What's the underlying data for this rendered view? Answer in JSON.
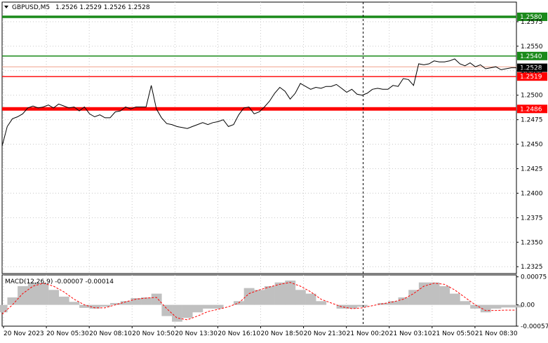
{
  "symbol_header": {
    "symbol": "GBPUSD,M5",
    "ohlc": "1.2526 1.2529 1.2526 1.2528",
    "menu_icon": "triangle-down-icon"
  },
  "chart_data": [
    {
      "type": "line",
      "panel": "main",
      "ylim": [
        1.2318,
        1.2595
      ],
      "y_ticks": [
        "1.2575",
        "1.2550",
        "1.2525",
        "1.2500",
        "1.2475",
        "1.2450",
        "1.2425",
        "1.2400",
        "1.2375",
        "1.2350",
        "1.2325"
      ],
      "y_tick_values": [
        1.2575,
        1.255,
        1.2525,
        1.25,
        1.2475,
        1.245,
        1.2425,
        1.24,
        1.2375,
        1.235,
        1.2325
      ],
      "x_ticks": [
        "20 Nov 2023",
        "20 Nov 05:30",
        "20 Nov 08:10",
        "20 Nov 10:50",
        "20 Nov 13:30",
        "20 Nov 16:10",
        "20 Nov 18:50",
        "20 Nov 21:30",
        "21 Nov 00:20",
        "21 Nov 03:10",
        "21 Nov 05:50",
        "21 Nov 08:30"
      ],
      "x_range": [
        0,
        100
      ],
      "vertical_marker_x": 70.2,
      "series": [
        {
          "color": "#000000",
          "x": [
            0,
            1,
            2,
            3,
            4,
            5,
            6,
            7,
            8,
            9,
            10,
            11,
            12,
            13,
            14,
            15,
            16,
            17,
            18,
            19,
            20,
            21,
            22,
            23,
            24,
            25,
            26,
            27,
            28,
            29,
            30,
            31,
            32,
            33,
            34,
            35,
            36,
            37,
            38,
            39,
            40,
            41,
            42,
            43,
            44,
            45,
            46,
            47,
            48,
            49,
            50,
            51,
            52,
            53,
            54,
            55,
            56,
            57,
            58,
            59,
            60,
            61,
            62,
            63,
            64,
            65,
            66,
            67,
            68,
            69,
            70,
            71,
            72,
            73,
            74,
            75,
            76,
            77,
            78,
            79,
            80,
            81,
            82,
            83,
            84,
            85,
            86,
            87,
            88,
            89,
            90,
            91,
            92,
            93,
            94,
            95,
            96,
            97,
            98,
            99,
            100
          ],
          "values": [
            1.2448,
            1.2468,
            1.2476,
            1.2478,
            1.2481,
            1.2487,
            1.2489,
            1.2487,
            1.2488,
            1.249,
            1.2487,
            1.2491,
            1.2489,
            1.2487,
            1.2488,
            1.2484,
            1.2488,
            1.2481,
            1.2478,
            1.248,
            1.2477,
            1.2477,
            1.2483,
            1.2484,
            1.2488,
            1.2486,
            1.2488,
            1.2488,
            1.2488,
            1.251,
            1.2486,
            1.2477,
            1.2471,
            1.247,
            1.2468,
            1.2467,
            1.2466,
            1.2468,
            1.247,
            1.2472,
            1.247,
            1.2472,
            1.2473,
            1.2475,
            1.2468,
            1.247,
            1.248,
            1.2487,
            1.2488,
            1.2481,
            1.2483,
            1.2488,
            1.2494,
            1.2502,
            1.2508,
            1.2504,
            1.2496,
            1.2502,
            1.2512,
            1.2509,
            1.2506,
            1.2508,
            1.2507,
            1.2509,
            1.2509,
            1.2511,
            1.2507,
            1.2503,
            1.2506,
            1.2501,
            1.25,
            1.2502,
            1.2506,
            1.2507,
            1.2506,
            1.2506,
            1.251,
            1.2509,
            1.2517,
            1.2516,
            1.251,
            1.2532,
            1.2531,
            1.2532,
            1.2535,
            1.2534,
            1.2534,
            1.2535,
            1.2537,
            1.2532,
            1.253,
            1.2533,
            1.2529,
            1.2531,
            1.2527,
            1.2528,
            1.2529,
            1.2526,
            1.2527,
            1.2528,
            1.2528
          ]
        }
      ],
      "levels": [
        {
          "label": "1.2580",
          "value": 1.258,
          "color": "#1a8a1a"
        },
        {
          "label": "1.2540",
          "value": 1.254,
          "color": "#1a8a1a"
        },
        {
          "label": "1.2528",
          "value": 1.2528,
          "color": "#000000"
        },
        {
          "label": "1.2519",
          "value": 1.2519,
          "color": "#ff0000"
        },
        {
          "label": "1.2486",
          "value": 1.2486,
          "color": "#ff0000"
        }
      ],
      "levels_plain": [
        {
          "value": 1.2529,
          "color": "#f0a08a"
        }
      ]
    },
    {
      "type": "bar",
      "panel": "macd",
      "title": "MACD(12,26,9) -0.00007 -0.00014",
      "ylim": [
        -0.00057,
        0.0008
      ],
      "y_ticks": [
        "0.00075",
        "0.00",
        "-0.00057"
      ],
      "y_tick_values": [
        0.00075,
        0.0,
        -0.00057
      ],
      "x_range": [
        0,
        100
      ],
      "series": [
        {
          "kind": "histogram",
          "color": "#c0c0c0",
          "x": [
            0,
            2,
            4,
            6,
            8,
            10,
            12,
            14,
            16,
            18,
            20,
            22,
            24,
            26,
            28,
            30,
            32,
            34,
            36,
            38,
            40,
            42,
            44,
            46,
            48,
            50,
            52,
            54,
            56,
            58,
            60,
            62,
            64,
            66,
            68,
            70,
            72,
            74,
            76,
            78,
            80,
            82,
            84,
            86,
            88,
            90,
            92,
            94,
            96,
            98,
            100
          ],
          "values": [
            -0.0002,
            0.0002,
            0.0005,
            0.0006,
            0.00058,
            0.0004,
            0.00022,
            8e-05,
            -8e-05,
            -0.0001,
            -5e-05,
            5e-05,
            0.0001,
            0.00018,
            0.0002,
            0.0003,
            -0.0003,
            -0.00045,
            -0.00035,
            -0.0002,
            -0.0001,
            -0.0001,
            0.0,
            0.0001,
            0.00045,
            0.0004,
            0.0005,
            0.0006,
            0.00065,
            0.0004,
            0.0003,
            0.0001,
            0.0,
            -0.0001,
            -0.0001,
            -5e-05,
            0.0,
            5e-05,
            0.0001,
            0.0002,
            0.0004,
            0.0006,
            0.0006,
            0.0005,
            0.0003,
            0.0001,
            -0.0001,
            -0.0002,
            -0.0001,
            -7e-05,
            -7e-05
          ]
        },
        {
          "kind": "signal",
          "color": "#ff0000",
          "x": [
            0,
            2,
            4,
            6,
            8,
            10,
            12,
            14,
            16,
            18,
            20,
            22,
            24,
            26,
            28,
            30,
            32,
            34,
            36,
            38,
            40,
            42,
            44,
            46,
            48,
            50,
            52,
            54,
            56,
            58,
            60,
            62,
            64,
            66,
            68,
            70,
            72,
            74,
            76,
            78,
            80,
            82,
            84,
            86,
            88,
            90,
            92,
            94,
            96,
            98,
            100
          ],
          "values": [
            -0.00025,
            0.0,
            0.0003,
            0.0005,
            0.00058,
            0.0005,
            0.00035,
            0.00015,
            0.0,
            -8e-05,
            -8e-05,
            0.0,
            8e-05,
            0.00015,
            0.00018,
            0.0002,
            -0.0001,
            -0.00035,
            -0.0004,
            -0.0003,
            -0.00018,
            -0.00012,
            -5e-05,
            5e-05,
            0.0003,
            0.0004,
            0.00048,
            0.00055,
            0.0006,
            0.0005,
            0.00035,
            0.00015,
            5e-05,
            -5e-05,
            -0.0001,
            -8e-05,
            -2e-05,
            3e-05,
            8e-05,
            0.00015,
            0.0003,
            0.0005,
            0.00058,
            0.00055,
            0.0004,
            0.0002,
            0.0,
            -0.00015,
            -0.00015,
            -0.00014,
            -0.00014
          ]
        }
      ]
    }
  ]
}
